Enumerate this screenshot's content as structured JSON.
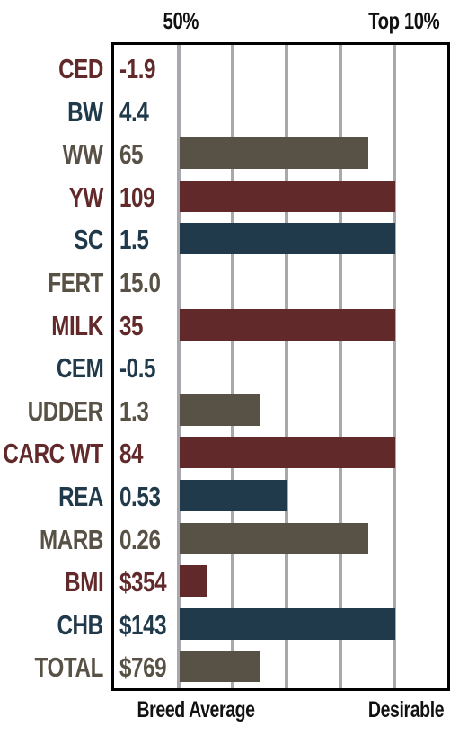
{
  "header": {
    "left": "50%",
    "right": "Top 10%"
  },
  "footer": {
    "left": "Breed Average",
    "right": "Desirable"
  },
  "colors": {
    "red": "#62292a",
    "blue": "#213a4b",
    "gray": "#585145",
    "grid": "#a9a8ad"
  },
  "chart_data": {
    "type": "bar",
    "orientation": "horizontal",
    "scale": "percentile rank",
    "axis_ticks": [
      "50%",
      "Top 10%"
    ],
    "axis_end_labels": [
      "Breed Average",
      "Desirable"
    ],
    "grid": true,
    "rows": [
      {
        "trait": "CED",
        "value": "-1.9",
        "bar": 0,
        "color": "red"
      },
      {
        "trait": "BW",
        "value": "4.4",
        "bar": 0,
        "color": "blue"
      },
      {
        "trait": "WW",
        "value": "65",
        "bar": 0.875,
        "color": "gray"
      },
      {
        "trait": "YW",
        "value": "109",
        "bar": 1.0,
        "color": "red"
      },
      {
        "trait": "SC",
        "value": "1.5",
        "bar": 1.0,
        "color": "blue"
      },
      {
        "trait": "FERT",
        "value": "15.0",
        "bar": 0,
        "color": "gray"
      },
      {
        "trait": "MILK",
        "value": "35",
        "bar": 1.0,
        "color": "red"
      },
      {
        "trait": "CEM",
        "value": "-0.5",
        "bar": 0,
        "color": "blue"
      },
      {
        "trait": "UDDER",
        "value": "1.3",
        "bar": 0.375,
        "color": "gray"
      },
      {
        "trait": "CARC WT",
        "value": "84",
        "bar": 1.0,
        "color": "red"
      },
      {
        "trait": "REA",
        "value": "0.53",
        "bar": 0.5,
        "color": "blue"
      },
      {
        "trait": "MARB",
        "value": "0.26",
        "bar": 0.875,
        "color": "gray"
      },
      {
        "trait": "BMI",
        "value": "$354",
        "bar": 0.13,
        "color": "red"
      },
      {
        "trait": "CHB",
        "value": "$143",
        "bar": 1.0,
        "color": "blue"
      },
      {
        "trait": "TOTAL",
        "value": "$769",
        "bar": 0.375,
        "color": "gray"
      }
    ]
  }
}
